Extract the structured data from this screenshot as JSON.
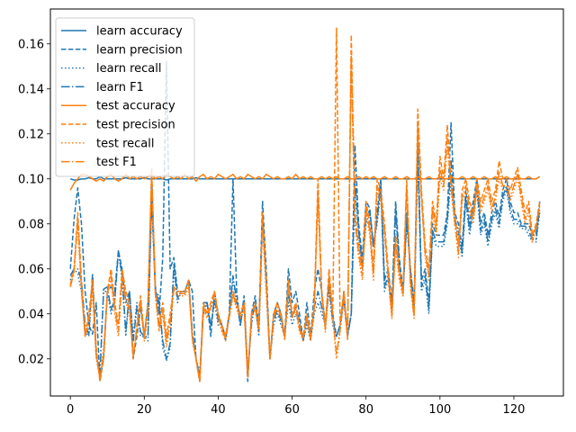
{
  "chart_data": {
    "type": "line",
    "title": "",
    "xlabel": "",
    "ylabel": "",
    "xlim": [
      -5.4,
      133.4
    ],
    "ylim": [
      0.0035,
      0.1755
    ],
    "xticks": [
      0,
      20,
      40,
      60,
      80,
      100,
      120
    ],
    "yticks": [
      0.02,
      0.04,
      0.06,
      0.08,
      0.1,
      0.12,
      0.14,
      0.16
    ],
    "ytick_labels": [
      "0.02",
      "0.04",
      "0.06",
      "0.08",
      "0.10",
      "0.12",
      "0.14",
      "0.16"
    ],
    "legend_placement": "top-left",
    "grid": false,
    "colors": {
      "learn": "#1f77b4",
      "test": "#ff7f0e"
    },
    "series": [
      {
        "name": "learn accuracy",
        "group": "learn",
        "style": "solid",
        "x_start": 0,
        "x_step": 1,
        "values": [
          0.1,
          0.0995,
          0.0995,
          0.1,
          0.1,
          0.1005,
          0.1,
          0.1,
          0.101,
          0.1,
          0.1,
          0.1,
          0.1,
          0.1,
          0.1,
          0.1005,
          0.1,
          0.1,
          0.1,
          0.1,
          0.1005,
          0.1,
          0.1,
          0.1,
          0.1,
          0.1,
          0.0995,
          0.1,
          0.1,
          0.1,
          0.1,
          0.1,
          0.1,
          0.1,
          0.1005,
          0.1,
          0.1,
          0.1,
          0.1,
          0.1,
          0.1,
          0.1,
          0.1,
          0.1,
          0.1,
          0.1,
          0.1,
          0.1,
          0.1,
          0.1,
          0.1,
          0.1,
          0.1,
          0.1,
          0.1,
          0.1,
          0.1,
          0.1,
          0.1,
          0.1,
          0.1,
          0.1,
          0.1,
          0.1,
          0.1,
          0.1,
          0.1,
          0.1,
          0.1,
          0.1,
          0.1,
          0.1,
          0.1,
          0.1,
          0.1,
          0.1,
          0.1,
          0.1,
          0.1,
          0.1,
          0.1,
          0.1,
          0.1,
          0.1,
          0.1,
          0.1,
          0.1,
          0.1,
          0.1,
          0.1,
          0.1,
          0.1,
          0.1,
          0.1,
          0.1,
          0.1,
          0.1,
          0.1,
          0.1,
          0.1,
          0.1,
          0.1,
          0.1,
          0.1,
          0.1,
          0.1,
          0.1,
          0.1,
          0.1,
          0.1,
          0.1,
          0.1,
          0.1,
          0.1,
          0.1,
          0.1,
          0.1,
          0.1,
          0.1,
          0.1,
          0.1,
          0.1,
          0.1,
          0.1,
          0.1,
          0.1,
          0.1,
          0.101
        ]
      },
      {
        "name": "learn precision",
        "group": "learn",
        "style": "dashed",
        "x_start": 0,
        "x_step": 1,
        "values": [
          0.06,
          0.082,
          0.096,
          0.08,
          0.05,
          0.035,
          0.031,
          0.045,
          0.01,
          0.02,
          0.05,
          0.052,
          0.05,
          0.068,
          0.06,
          0.045,
          0.05,
          0.02,
          0.03,
          0.043,
          0.03,
          0.045,
          0.1,
          0.052,
          0.04,
          0.065,
          0.152,
          0.06,
          0.065,
          0.05,
          0.05,
          0.05,
          0.055,
          0.05,
          0.02,
          0.01,
          0.045,
          0.045,
          0.03,
          0.05,
          0.04,
          0.035,
          0.03,
          0.04,
          0.1,
          0.05,
          0.035,
          0.048,
          0.01,
          0.04,
          0.048,
          0.035,
          0.09,
          0.06,
          0.02,
          0.04,
          0.045,
          0.04,
          0.03,
          0.06,
          0.045,
          0.05,
          0.04,
          0.028,
          0.045,
          0.03,
          0.05,
          0.06,
          0.05,
          0.035,
          0.055,
          0.04,
          0.03,
          0.035,
          0.05,
          0.03,
          0.04,
          0.115,
          0.08,
          0.065,
          0.09,
          0.087,
          0.07,
          0.085,
          0.1,
          0.055,
          0.06,
          0.045,
          0.09,
          0.065,
          0.05,
          0.085,
          0.06,
          0.045,
          0.116,
          0.055,
          0.06,
          0.045,
          0.08,
          0.075,
          0.075,
          0.075,
          0.085,
          0.125,
          0.085,
          0.08,
          0.07,
          0.095,
          0.08,
          0.09,
          0.1,
          0.08,
          0.085,
          0.075,
          0.085,
          0.09,
          0.083,
          0.095,
          0.1,
          0.09,
          0.085,
          0.085,
          0.08,
          0.08,
          0.08,
          0.075,
          0.075,
          0.09
        ]
      },
      {
        "name": "learn recall",
        "group": "learn",
        "style": "dotted",
        "x_start": 0,
        "x_step": 1,
        "values": [
          0.055,
          0.06,
          0.058,
          0.05,
          0.032,
          0.03,
          0.055,
          0.02,
          0.015,
          0.05,
          0.05,
          0.04,
          0.045,
          0.068,
          0.055,
          0.03,
          0.05,
          0.03,
          0.045,
          0.03,
          0.03,
          0.028,
          0.09,
          0.05,
          0.048,
          0.025,
          0.019,
          0.025,
          0.06,
          0.045,
          0.05,
          0.05,
          0.055,
          0.03,
          0.02,
          0.014,
          0.04,
          0.045,
          0.035,
          0.045,
          0.035,
          0.035,
          0.028,
          0.04,
          0.055,
          0.045,
          0.035,
          0.045,
          0.015,
          0.035,
          0.045,
          0.03,
          0.08,
          0.05,
          0.02,
          0.035,
          0.04,
          0.035,
          0.03,
          0.045,
          0.035,
          0.04,
          0.035,
          0.028,
          0.035,
          0.028,
          0.04,
          0.045,
          0.04,
          0.035,
          0.05,
          0.035,
          0.03,
          0.035,
          0.045,
          0.03,
          0.04,
          0.095,
          0.075,
          0.06,
          0.08,
          0.085,
          0.07,
          0.08,
          0.095,
          0.05,
          0.055,
          0.04,
          0.085,
          0.06,
          0.048,
          0.08,
          0.06,
          0.04,
          0.11,
          0.05,
          0.055,
          0.04,
          0.075,
          0.07,
          0.07,
          0.07,
          0.08,
          0.1,
          0.08,
          0.075,
          0.065,
          0.09,
          0.075,
          0.085,
          0.095,
          0.075,
          0.08,
          0.07,
          0.08,
          0.085,
          0.078,
          0.09,
          0.095,
          0.085,
          0.08,
          0.08,
          0.078,
          0.078,
          0.075,
          0.072,
          0.072,
          0.085
        ]
      },
      {
        "name": "learn F1",
        "group": "learn",
        "style": "dashdot",
        "x_start": 0,
        "x_step": 1,
        "values": [
          0.057,
          0.06,
          0.06,
          0.055,
          0.035,
          0.031,
          0.058,
          0.022,
          0.012,
          0.051,
          0.052,
          0.042,
          0.046,
          0.068,
          0.057,
          0.032,
          0.05,
          0.028,
          0.043,
          0.032,
          0.03,
          0.03,
          0.093,
          0.051,
          0.045,
          0.028,
          0.02,
          0.027,
          0.062,
          0.047,
          0.05,
          0.05,
          0.055,
          0.032,
          0.02,
          0.012,
          0.042,
          0.045,
          0.034,
          0.047,
          0.037,
          0.035,
          0.029,
          0.04,
          0.057,
          0.046,
          0.035,
          0.046,
          0.013,
          0.036,
          0.046,
          0.032,
          0.083,
          0.054,
          0.02,
          0.037,
          0.042,
          0.037,
          0.03,
          0.05,
          0.038,
          0.043,
          0.037,
          0.028,
          0.038,
          0.029,
          0.043,
          0.05,
          0.043,
          0.035,
          0.052,
          0.037,
          0.03,
          0.035,
          0.047,
          0.03,
          0.04,
          0.1,
          0.077,
          0.062,
          0.083,
          0.086,
          0.07,
          0.082,
          0.097,
          0.052,
          0.057,
          0.042,
          0.087,
          0.062,
          0.049,
          0.082,
          0.06,
          0.042,
          0.112,
          0.052,
          0.057,
          0.042,
          0.077,
          0.072,
          0.072,
          0.072,
          0.082,
          0.108,
          0.082,
          0.077,
          0.067,
          0.092,
          0.077,
          0.087,
          0.097,
          0.077,
          0.082,
          0.072,
          0.082,
          0.087,
          0.08,
          0.092,
          0.097,
          0.087,
          0.082,
          0.082,
          0.079,
          0.079,
          0.077,
          0.073,
          0.073,
          0.087
        ]
      },
      {
        "name": "test accuracy",
        "group": "test",
        "style": "solid",
        "x_start": 0,
        "x_step": 1,
        "values": [
          0.095,
          0.098,
          0.1,
          0.102,
          0.102,
          0.101,
          0.1,
          0.099,
          0.1,
          0.099,
          0.101,
          0.102,
          0.1,
          0.099,
          0.1,
          0.102,
          0.1,
          0.101,
          0.1,
          0.101,
          0.1,
          0.101,
          0.102,
          0.1,
          0.101,
          0.1,
          0.102,
          0.101,
          0.1,
          0.101,
          0.1,
          0.102,
          0.1,
          0.101,
          0.099,
          0.101,
          0.102,
          0.1,
          0.101,
          0.1,
          0.102,
          0.101,
          0.1,
          0.101,
          0.102,
          0.1,
          0.101,
          0.1,
          0.102,
          0.101,
          0.1,
          0.101,
          0.1,
          0.102,
          0.101,
          0.1,
          0.101,
          0.1,
          0.1,
          0.101,
          0.1,
          0.102,
          0.1,
          0.101,
          0.1,
          0.101,
          0.1,
          0.1,
          0.101,
          0.1,
          0.101,
          0.1,
          0.101,
          0.1,
          0.1,
          0.101,
          0.1,
          0.1,
          0.101,
          0.1,
          0.101,
          0.1,
          0.101,
          0.1,
          0.1,
          0.101,
          0.1,
          0.1,
          0.101,
          0.1,
          0.1,
          0.101,
          0.1,
          0.1,
          0.101,
          0.1,
          0.1,
          0.101,
          0.1,
          0.1,
          0.101,
          0.1,
          0.1,
          0.101,
          0.1,
          0.1,
          0.101,
          0.1,
          0.1,
          0.101,
          0.1,
          0.1,
          0.101,
          0.1,
          0.1,
          0.101,
          0.1,
          0.1,
          0.101,
          0.1,
          0.1,
          0.101,
          0.1,
          0.1,
          0.101,
          0.1,
          0.1,
          0.101
        ]
      },
      {
        "name": "test precision",
        "group": "test",
        "style": "dashed",
        "x_start": 0,
        "x_step": 1,
        "values": [
          0.053,
          0.06,
          0.085,
          0.055,
          0.03,
          0.04,
          0.055,
          0.025,
          0.01,
          0.02,
          0.05,
          0.06,
          0.045,
          0.035,
          0.06,
          0.05,
          0.045,
          0.02,
          0.035,
          0.048,
          0.03,
          0.045,
          0.105,
          0.05,
          0.035,
          0.045,
          0.03,
          0.04,
          0.052,
          0.05,
          0.05,
          0.05,
          0.055,
          0.03,
          0.02,
          0.01,
          0.045,
          0.04,
          0.045,
          0.05,
          0.04,
          0.035,
          0.03,
          0.04,
          0.05,
          0.045,
          0.04,
          0.045,
          0.012,
          0.04,
          0.045,
          0.035,
          0.085,
          0.055,
          0.02,
          0.04,
          0.045,
          0.04,
          0.03,
          0.055,
          0.04,
          0.045,
          0.035,
          0.03,
          0.04,
          0.03,
          0.045,
          0.1,
          0.05,
          0.035,
          0.06,
          0.04,
          0.167,
          0.035,
          0.05,
          0.03,
          0.164,
          0.085,
          0.07,
          0.06,
          0.09,
          0.08,
          0.06,
          0.1,
          0.095,
          0.08,
          0.06,
          0.04,
          0.075,
          0.06,
          0.05,
          0.1,
          0.055,
          0.04,
          0.131,
          0.095,
          0.07,
          0.06,
          0.09,
          0.08,
          0.11,
          0.1,
          0.124,
          0.1,
          0.085,
          0.07,
          0.095,
          0.1,
          0.09,
          0.085,
          0.1,
          0.09,
          0.095,
          0.1,
          0.09,
          0.095,
          0.108,
          0.1,
          0.1,
          0.095,
          0.1,
          0.105,
          0.095,
          0.085,
          0.09,
          0.075,
          0.08,
          0.09
        ]
      },
      {
        "name": "test recall",
        "group": "test",
        "style": "dotted",
        "x_start": 0,
        "x_step": 1,
        "values": [
          0.052,
          0.058,
          0.08,
          0.05,
          0.03,
          0.035,
          0.05,
          0.02,
          0.012,
          0.025,
          0.048,
          0.055,
          0.04,
          0.03,
          0.055,
          0.045,
          0.04,
          0.022,
          0.032,
          0.045,
          0.028,
          0.04,
          0.1,
          0.048,
          0.032,
          0.04,
          0.025,
          0.035,
          0.05,
          0.048,
          0.048,
          0.048,
          0.052,
          0.028,
          0.02,
          0.011,
          0.042,
          0.038,
          0.042,
          0.048,
          0.038,
          0.032,
          0.028,
          0.038,
          0.048,
          0.042,
          0.038,
          0.042,
          0.012,
          0.038,
          0.042,
          0.032,
          0.08,
          0.052,
          0.02,
          0.038,
          0.042,
          0.038,
          0.028,
          0.052,
          0.038,
          0.042,
          0.032,
          0.028,
          0.038,
          0.028,
          0.042,
          0.09,
          0.048,
          0.032,
          0.055,
          0.038,
          0.02,
          0.032,
          0.048,
          0.028,
          0.15,
          0.08,
          0.065,
          0.055,
          0.085,
          0.075,
          0.055,
          0.095,
          0.09,
          0.075,
          0.055,
          0.038,
          0.07,
          0.055,
          0.048,
          0.095,
          0.052,
          0.038,
          0.12,
          0.09,
          0.065,
          0.055,
          0.085,
          0.075,
          0.1,
          0.095,
          0.115,
          0.095,
          0.08,
          0.065,
          0.09,
          0.095,
          0.085,
          0.08,
          0.095,
          0.085,
          0.09,
          0.095,
          0.085,
          0.09,
          0.1,
          0.095,
          0.095,
          0.09,
          0.095,
          0.1,
          0.09,
          0.08,
          0.085,
          0.072,
          0.078,
          0.088
        ]
      },
      {
        "name": "test F1",
        "group": "test",
        "style": "dashdot",
        "x_start": 0,
        "x_step": 1,
        "values": [
          0.052,
          0.059,
          0.082,
          0.052,
          0.03,
          0.037,
          0.052,
          0.022,
          0.011,
          0.022,
          0.049,
          0.057,
          0.042,
          0.032,
          0.057,
          0.047,
          0.042,
          0.021,
          0.033,
          0.046,
          0.029,
          0.042,
          0.102,
          0.049,
          0.033,
          0.042,
          0.027,
          0.037,
          0.051,
          0.049,
          0.049,
          0.049,
          0.053,
          0.029,
          0.02,
          0.01,
          0.043,
          0.039,
          0.043,
          0.049,
          0.039,
          0.033,
          0.029,
          0.039,
          0.049,
          0.043,
          0.039,
          0.043,
          0.012,
          0.039,
          0.043,
          0.033,
          0.082,
          0.053,
          0.02,
          0.039,
          0.043,
          0.039,
          0.029,
          0.053,
          0.039,
          0.043,
          0.033,
          0.029,
          0.039,
          0.029,
          0.043,
          0.095,
          0.049,
          0.033,
          0.057,
          0.039,
          0.022,
          0.033,
          0.049,
          0.029,
          0.155,
          0.082,
          0.067,
          0.057,
          0.087,
          0.077,
          0.057,
          0.097,
          0.092,
          0.077,
          0.057,
          0.039,
          0.072,
          0.057,
          0.049,
          0.097,
          0.053,
          0.039,
          0.125,
          0.092,
          0.067,
          0.057,
          0.087,
          0.077,
          0.105,
          0.097,
          0.118,
          0.097,
          0.082,
          0.067,
          0.092,
          0.097,
          0.087,
          0.082,
          0.097,
          0.087,
          0.092,
          0.097,
          0.087,
          0.092,
          0.103,
          0.097,
          0.097,
          0.092,
          0.097,
          0.102,
          0.092,
          0.082,
          0.087,
          0.073,
          0.079,
          0.089
        ]
      }
    ]
  }
}
